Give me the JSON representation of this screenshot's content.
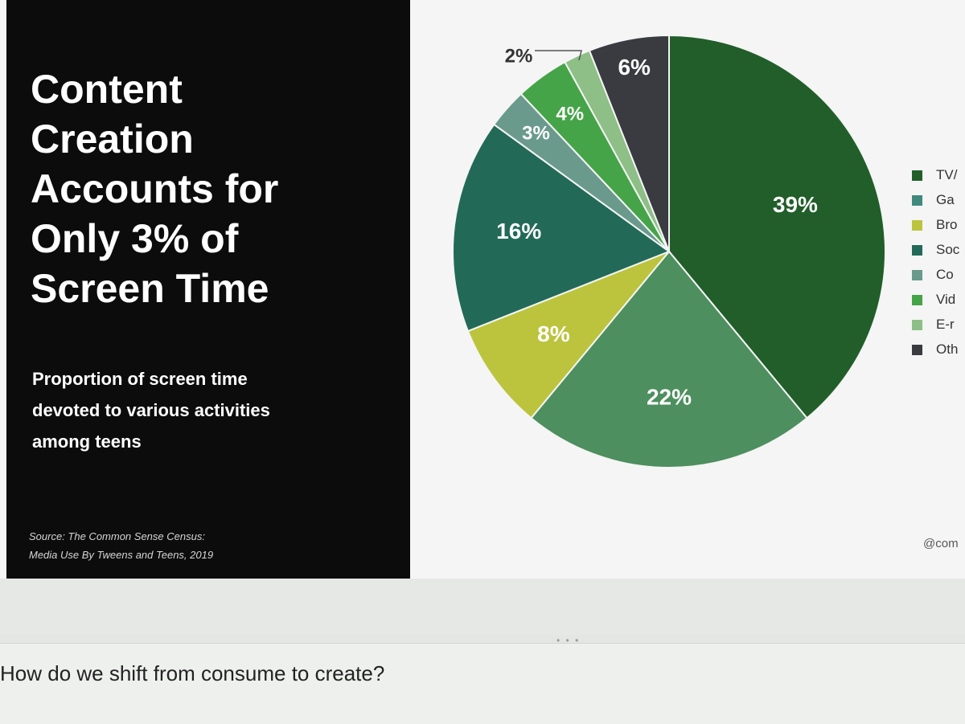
{
  "slide": {
    "title": "Content\nCreation\nAccounts for\nOnly 3% of\nScreen Time",
    "subtitle": "Proportion of screen time\ndevoted to various activities\namong teens",
    "source": "Source: The Common Sense Census:\nMedia Use By Tweens and Teens, 2019",
    "handle": "@com"
  },
  "chart_data": {
    "type": "pie",
    "title": "",
    "slices": [
      {
        "name": "TV/",
        "value": 39,
        "label": "39%",
        "color": "#215e2a"
      },
      {
        "name": "Ga",
        "value": 22,
        "label": "22%",
        "color": "#4d8f5e"
      },
      {
        "name": "Bro",
        "value": 8,
        "label": "8%",
        "color": "#bcc43e"
      },
      {
        "name": "Soc",
        "value": 16,
        "label": "16%",
        "color": "#226a57"
      },
      {
        "name": "Co",
        "value": 3,
        "label": "3%",
        "color": "#6a9a8c"
      },
      {
        "name": "Vid",
        "value": 4,
        "label": "4%",
        "color": "#45a448"
      },
      {
        "name": "E-r",
        "value": 2,
        "label": "2%",
        "color": "#8dbf87"
      },
      {
        "name": "Oth",
        "value": 6,
        "label": "6%",
        "color": "#393b40"
      }
    ],
    "legend": {
      "placement": "right",
      "items": [
        {
          "label": "TV/",
          "color": "#215e2a"
        },
        {
          "label": "Ga",
          "color": "#3f8a7c"
        },
        {
          "label": "Bro",
          "color": "#bcc43e"
        },
        {
          "label": "Soc",
          "color": "#226a57"
        },
        {
          "label": "Co",
          "color": "#6a9a8c"
        },
        {
          "label": "Vid",
          "color": "#45a448"
        },
        {
          "label": "E-r",
          "color": "#8dbf87"
        },
        {
          "label": "Oth",
          "color": "#393b40"
        }
      ]
    }
  },
  "notes": {
    "text": "How do we shift from consume to create?"
  },
  "handle_dots": "• • •"
}
